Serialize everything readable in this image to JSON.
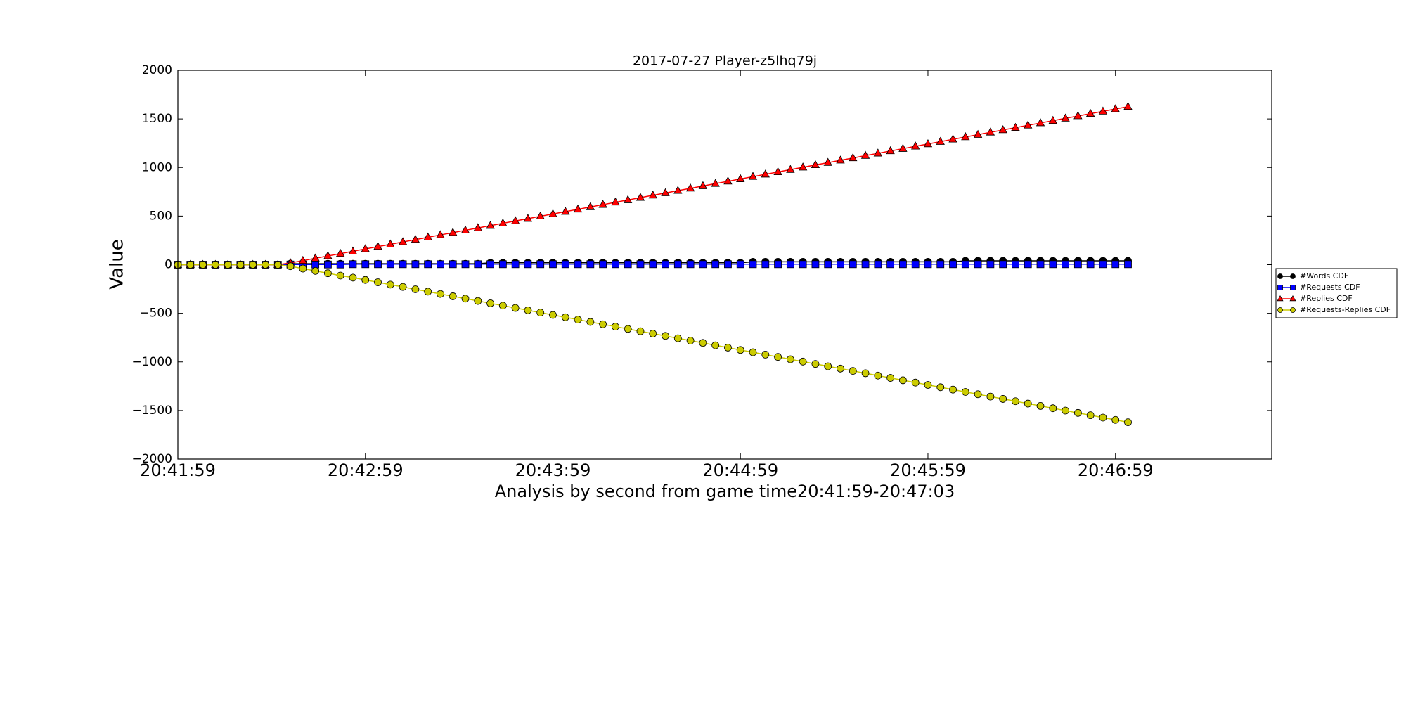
{
  "chart_data": {
    "type": "line",
    "title": "2017-07-27 Player-z5lhq79j",
    "x_label": "Analysis by second from game time20:41:59-20:47:03",
    "y_label": "Value",
    "x": [
      75719,
      75723,
      75727,
      75731,
      75735,
      75739,
      75743,
      75747,
      75751,
      75755,
      75759,
      75763,
      75767,
      75771,
      75775,
      75779,
      75783,
      75787,
      75791,
      75795,
      75799,
      75803,
      75807,
      75811,
      75815,
      75819,
      75823,
      75827,
      75831,
      75835,
      75839,
      75843,
      75847,
      75851,
      75855,
      75859,
      75863,
      75867,
      75871,
      75875,
      75879,
      75883,
      75887,
      75891,
      75895,
      75899,
      75903,
      75907,
      75911,
      75915,
      75919,
      75923,
      75927,
      75931,
      75935,
      75939,
      75943,
      75947,
      75951,
      75955,
      75959,
      75963,
      75967,
      75971,
      75975,
      75979,
      75983,
      75987,
      75991,
      75995,
      75999,
      76003,
      76007,
      76011,
      76015,
      76019,
      76023
    ],
    "series": [
      {
        "name": "#Words CDF",
        "color": "#000000",
        "marker": "circle",
        "values": [
          0,
          0,
          0,
          0,
          0,
          0,
          0,
          0,
          0,
          10,
          10,
          10,
          10,
          10,
          10,
          10,
          10,
          10,
          10,
          10,
          10,
          10,
          10,
          10,
          10,
          20,
          20,
          20,
          20,
          20,
          20,
          20,
          20,
          20,
          20,
          20,
          20,
          20,
          20,
          20,
          20,
          20,
          20,
          20,
          20,
          20,
          30,
          30,
          30,
          30,
          30,
          30,
          30,
          30,
          30,
          30,
          30,
          30,
          30,
          30,
          30,
          30,
          30,
          40,
          40,
          40,
          40,
          40,
          40,
          40,
          40,
          40,
          40,
          40,
          40,
          40,
          40
        ]
      },
      {
        "name": "#Requests CDF",
        "color": "#0000ff",
        "marker": "square",
        "values": [
          0,
          0,
          0,
          0,
          0,
          0,
          0,
          0,
          0,
          2,
          2,
          2,
          2,
          2,
          5,
          5,
          5,
          5,
          5,
          5,
          5,
          5,
          5,
          5,
          5,
          5,
          5,
          5,
          5,
          5,
          5,
          5,
          5,
          5,
          5,
          5,
          5,
          5,
          5,
          5,
          5,
          5,
          5,
          5,
          5,
          5,
          5,
          5,
          5,
          5,
          5,
          5,
          5,
          5,
          5,
          5,
          5,
          5,
          5,
          5,
          5,
          5,
          5,
          5,
          5,
          5,
          5,
          5,
          5,
          5,
          5,
          5,
          5,
          5,
          5,
          5,
          5
        ]
      },
      {
        "name": "#Replies CDF",
        "color": "#ff0000",
        "marker": "triangle",
        "values": [
          0,
          0,
          0,
          0,
          0,
          0,
          0,
          0,
          0,
          18,
          42,
          66,
          90,
          114,
          138,
          162,
          186,
          210,
          234,
          258,
          282,
          306,
          330,
          354,
          378,
          402,
          426,
          450,
          474,
          498,
          522,
          546,
          570,
          594,
          618,
          642,
          666,
          690,
          714,
          738,
          762,
          786,
          810,
          834,
          858,
          882,
          906,
          930,
          954,
          978,
          1002,
          1026,
          1050,
          1074,
          1098,
          1122,
          1146,
          1170,
          1194,
          1218,
          1242,
          1266,
          1290,
          1314,
          1338,
          1362,
          1386,
          1410,
          1434,
          1458,
          1482,
          1506,
          1530,
          1554,
          1578,
          1602,
          1626
        ]
      },
      {
        "name": "#Requests-Replies CDF",
        "color": "#cccc00",
        "marker": "circle",
        "values": [
          0,
          0,
          0,
          0,
          0,
          0,
          0,
          0,
          0,
          -16,
          -40,
          -64,
          -88,
          -112,
          -133,
          -157,
          -181,
          -205,
          -229,
          -253,
          -277,
          -301,
          -325,
          -349,
          -373,
          -397,
          -421,
          -445,
          -469,
          -493,
          -517,
          -541,
          -565,
          -589,
          -613,
          -637,
          -661,
          -685,
          -709,
          -733,
          -757,
          -781,
          -805,
          -829,
          -853,
          -877,
          -901,
          -925,
          -949,
          -973,
          -997,
          -1021,
          -1045,
          -1069,
          -1093,
          -1117,
          -1141,
          -1165,
          -1189,
          -1213,
          -1237,
          -1261,
          -1285,
          -1309,
          -1333,
          -1357,
          -1381,
          -1405,
          -1429,
          -1453,
          -1477,
          -1501,
          -1525,
          -1549,
          -1573,
          -1597,
          -1621
        ]
      }
    ],
    "xlim": [
      75719,
      76069
    ],
    "xticks": [
      {
        "value": 75719,
        "label": "20:41:59"
      },
      {
        "value": 75779,
        "label": "20:42:59"
      },
      {
        "value": 75839,
        "label": "20:43:59"
      },
      {
        "value": 75899,
        "label": "20:44:59"
      },
      {
        "value": 75959,
        "label": "20:45:59"
      },
      {
        "value": 76019,
        "label": "20:46:59"
      }
    ],
    "ylim": [
      -2000,
      2000
    ],
    "yticks": [
      {
        "value": -2000,
        "label": "−2000"
      },
      {
        "value": -1500,
        "label": "−1500"
      },
      {
        "value": -1000,
        "label": "−1000"
      },
      {
        "value": -500,
        "label": "−500"
      },
      0,
      500,
      1000,
      1500,
      2000
    ],
    "legend": "outside right"
  }
}
